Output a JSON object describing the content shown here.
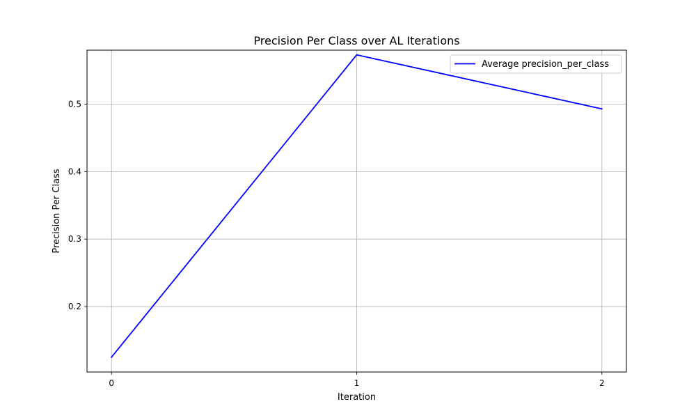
{
  "chart_data": {
    "type": "line",
    "title": "Precision Per Class over AL Iterations",
    "xlabel": "Iteration",
    "ylabel": "Precision Per Class",
    "x": [
      0,
      1,
      2
    ],
    "x_ticks": [
      "0",
      "1",
      "2"
    ],
    "y_ticks": [
      "0.2",
      "0.3",
      "0.4",
      "0.5"
    ],
    "y_tick_values": [
      0.2,
      0.3,
      0.4,
      0.5
    ],
    "xlim": [
      -0.1,
      2.1
    ],
    "ylim": [
      0.103,
      0.58
    ],
    "grid": true,
    "legend_position": "top-right",
    "series": [
      {
        "name": "Average precision_per_class",
        "values": [
          0.125,
          0.573,
          0.493
        ],
        "color": "#0000ff"
      }
    ]
  }
}
